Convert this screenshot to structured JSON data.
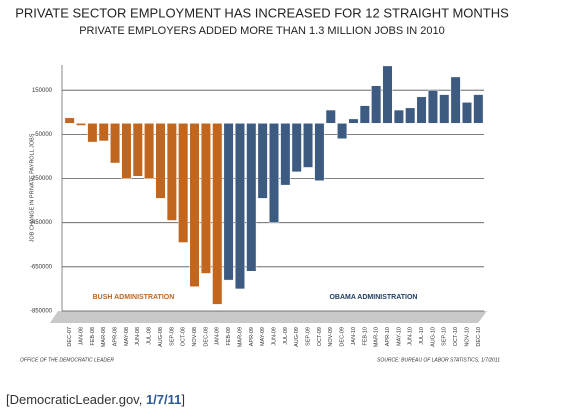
{
  "chart_data": {
    "type": "bar",
    "title": "PRIVATE SECTOR EMPLOYMENT HAS INCREASED FOR 12 STRAIGHT MONTHS",
    "subtitle": "PRIVATE EMPLOYERS ADDED MORE THAN 1.3 MILLION JOBS IN 2010",
    "y_label": "JOB CHANGE IN PRIVATE PAYROLL JOBS",
    "categories": [
      "DEC-07",
      "JAN-08",
      "FEB-08",
      "MAR-08",
      "APR-08",
      "MAY-08",
      "JUN-08",
      "JUL-08",
      "AUG-08",
      "SEP-08",
      "OCT-08",
      "NOV-08",
      "DEC-08",
      "JAN-09",
      "FEB-09",
      "MAR-09",
      "APR-09",
      "MAY-09",
      "JUN-09",
      "JUL-09",
      "AUG-09",
      "SEP-09",
      "OCT-09",
      "NOV-09",
      "DEC-09",
      "JAN-10",
      "FEB-10",
      "MAR-10",
      "APR-10",
      "MAY-10",
      "JUN-10",
      "JUL-10",
      "AUG-10",
      "SEP-10",
      "OCT-10",
      "NOV-10",
      "DEC-10"
    ],
    "series": [
      {
        "name": "BUSH ADMINISTRATION",
        "color": "#c0661f",
        "values": [
          25000,
          -10000,
          -85000,
          -80000,
          -180000,
          -250000,
          -240000,
          -250000,
          -340000,
          -440000,
          -540000,
          -740000,
          -680000,
          -820000,
          null,
          null,
          null,
          null,
          null,
          null,
          null,
          null,
          null,
          null,
          null,
          null,
          null,
          null,
          null,
          null,
          null,
          null,
          null,
          null,
          null,
          null,
          null
        ]
      },
      {
        "name": "OBAMA ADMINISTRATION",
        "color": "#3d5a80",
        "values": [
          null,
          null,
          null,
          null,
          null,
          null,
          null,
          null,
          null,
          null,
          null,
          null,
          null,
          null,
          -710000,
          -750000,
          -670000,
          -340000,
          -450000,
          -280000,
          -220000,
          -200000,
          -260000,
          60000,
          -70000,
          20000,
          80000,
          170000,
          260000,
          60000,
          70000,
          120000,
          150000,
          130000,
          210000,
          95000,
          130000
        ]
      }
    ],
    "ylim": [
      -850000,
      264000
    ],
    "yticks": [
      150000,
      -50000,
      -250000,
      -450000,
      -650000,
      -850000
    ],
    "grid": true,
    "footer_left": "OFFICE OF THE DEMOCRATIC LEADER",
    "footer_right": "SOURCE: BUREAU OF LABOR STATISTICS, 1/7/2011"
  },
  "caption": {
    "prefix": "[DemocraticLeader.gov, ",
    "link": "1/7/11",
    "suffix": "]"
  }
}
